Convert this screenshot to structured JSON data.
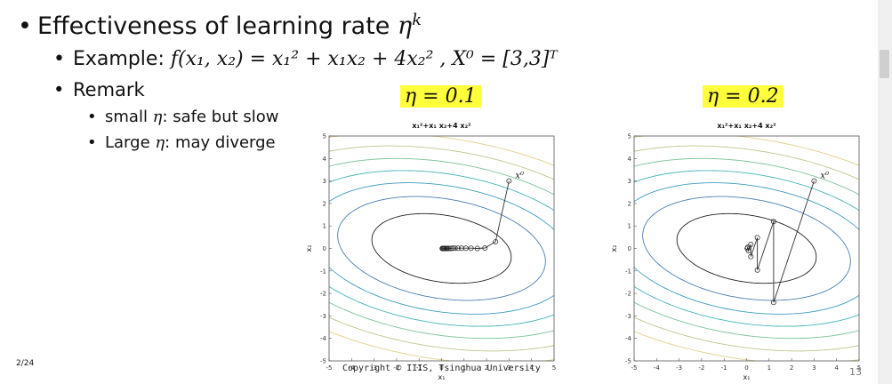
{
  "slide": {
    "title": "Effectiveness of learning rate",
    "title_symbol": "η",
    "title_sup": "k",
    "example_label": "Example:",
    "example_formula": "f(x₁, x₂) = x₁² + x₁x₂ + 4x₂² , X⁰ = [3,3]ᵀ",
    "remark_label": "Remark",
    "remarks": [
      {
        "prefix": "small ",
        "symbol": "η",
        "suffix": ": safe but slow"
      },
      {
        "prefix": "Large ",
        "symbol": "η",
        "suffix": ": may diverge"
      }
    ],
    "page_left": "2/24",
    "copyright": "Copyright © IIIS, Tsinghua University",
    "page_number": "13"
  },
  "chart_data": [
    {
      "type": "line",
      "label": "η = 0.1",
      "title": "x₁²+x₁ x₂+4 x₂²",
      "xlabel": "x₁",
      "ylabel": "x₂",
      "xlim": [
        -5,
        5
      ],
      "ylim": [
        -5,
        5
      ],
      "xticks": [
        "-5",
        "-4",
        "-3",
        "-2",
        "-1",
        "0",
        "1",
        "2",
        "3",
        "4",
        "5"
      ],
      "yticks": [
        "5",
        "4",
        "3",
        "2",
        "1",
        "0",
        "-1",
        "-2",
        "-3",
        "-4",
        "-5"
      ],
      "start_label": "x⁰",
      "contour_levels": [
        9,
        20,
        32,
        45,
        60,
        78,
        98
      ],
      "series": [
        {
          "x": [
            3.0,
            2.4,
            1.93,
            1.59,
            1.31,
            1.08,
            0.89,
            0.73,
            0.6,
            0.5,
            0.41,
            0.33,
            0.27,
            0.22,
            0.18,
            0.14,
            0.11,
            0.08,
            0.05,
            0.03
          ],
          "y": [
            3.0,
            0.3,
            0.02,
            0.0,
            0.01,
            0.01,
            0.01,
            0.01,
            0.01,
            0.01,
            0.0,
            0.0,
            0.0,
            0.0,
            0.0,
            0.0,
            0.0,
            0.0,
            0.0,
            0.0
          ]
        }
      ]
    },
    {
      "type": "line",
      "label": "η = 0.2",
      "title": "x₁²+x₁ x₂+4 x₂²",
      "xlabel": "x₁",
      "ylabel": "x₂",
      "xlim": [
        -5,
        5
      ],
      "ylim": [
        -5,
        5
      ],
      "xticks": [
        "-5",
        "-4",
        "-3",
        "-2",
        "-1",
        "0",
        "1",
        "2",
        "3",
        "4",
        "5"
      ],
      "yticks": [
        "5",
        "4",
        "3",
        "2",
        "1",
        "0",
        "-1",
        "-2",
        "-3",
        "-4",
        "-5"
      ],
      "start_label": "x⁰",
      "contour_levels": [
        9,
        20,
        32,
        45,
        60,
        78,
        98
      ],
      "series": [
        {
          "x": [
            3.0,
            1.2,
            1.2,
            0.48,
            0.48,
            0.19,
            0.19,
            0.08,
            0.05,
            0.03
          ],
          "y": [
            3.0,
            -2.4,
            1.2,
            -0.96,
            0.48,
            -0.36,
            0.18,
            -0.1,
            0.05,
            0.0
          ]
        }
      ]
    }
  ]
}
